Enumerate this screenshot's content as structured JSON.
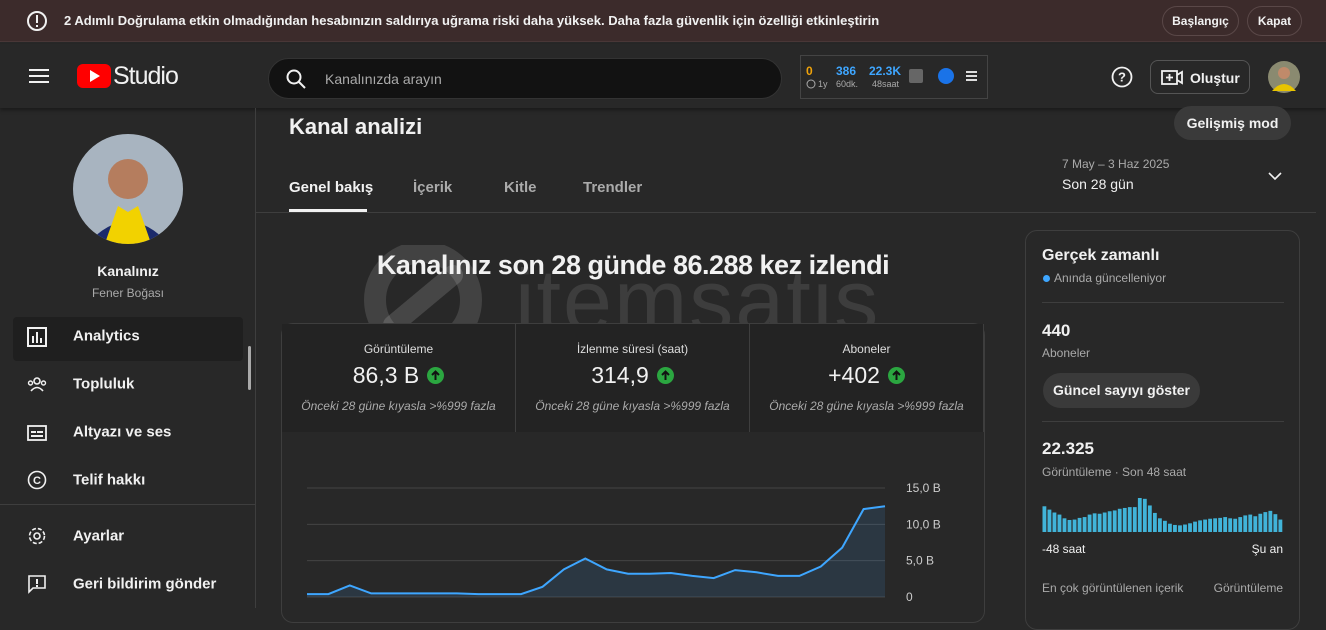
{
  "banner": {
    "message": "2 Adımlı Doğrulama etkin olmadığından hesabınızın saldırıya uğrama riski daha yüksek. Daha fazla güvenlik için özelliği etkinleştirin",
    "actions": [
      "Başlangıç",
      "Kapat"
    ]
  },
  "header": {
    "logo": "Studio",
    "search_placeholder": "Kanalınızda arayın",
    "stats": [
      {
        "value": "0",
        "label": "1y"
      },
      {
        "value": "386",
        "label": "60dk."
      },
      {
        "value": "22.3K",
        "label": "48saat"
      }
    ],
    "create": "Oluştur"
  },
  "sidebar": {
    "channel_name": "Kanalınız",
    "channel_subtitle": "Fener Boğası",
    "nav": [
      "Analytics",
      "Topluluk",
      "Altyazı ve ses",
      "Telif hakkı"
    ],
    "footer": [
      "Ayarlar",
      "Geri bildirim gönder"
    ]
  },
  "page": {
    "title": "Kanal analizi",
    "advanced": "Gelişmiş mod",
    "tabs": [
      "Genel bakış",
      "İçerik",
      "Kitle",
      "Trendler"
    ],
    "date_range": "7 May – 3 Haz 2025",
    "period": "Son 28 gün"
  },
  "watermark": "itemsatis",
  "overview": {
    "headline": "Kanalınız son 28 günde 86.288 kez izlendi",
    "metrics": [
      {
        "label": "Görüntüleme",
        "value": "86,3 B",
        "comparison": "Önceki 28 güne kıyasla >%999 fazla"
      },
      {
        "label": "İzlenme süresi (saat)",
        "value": "314,9",
        "comparison": "Önceki 28 güne kıyasla >%999 fazla"
      },
      {
        "label": "Aboneler",
        "value": "+402",
        "comparison": "Önceki 28 güne kıyasla >%999 fazla"
      }
    ]
  },
  "overview_chart": {
    "type": "line",
    "color": "#3ea6ff",
    "ylim": [
      0,
      15
    ],
    "yticks": [
      0,
      {
        "value": 5,
        "label": "5,0 B"
      },
      {
        "value": 10,
        "label": "10,0 B"
      },
      {
        "value": 15,
        "label": "15,0 B"
      }
    ],
    "grid": true,
    "values": [
      0.4,
      0.4,
      1.6,
      0.5,
      0.5,
      0.5,
      0.5,
      0.5,
      0.4,
      0.4,
      0.4,
      1.4,
      3.8,
      5.3,
      3.8,
      3.2,
      3.2,
      3.3,
      2.9,
      2.6,
      3.7,
      3.4,
      2.9,
      2.9,
      4.2,
      6.8,
      12.1,
      12.5
    ]
  },
  "realtime": {
    "title": "Gerçek zamanlı",
    "status": "Anında güncelleniyor",
    "subscribers": "440",
    "subscribers_label": "Aboneler",
    "button": "Güncel sayıyı göster",
    "views": "22.325",
    "views_label": "Görüntüleme · Son 48 saat",
    "chart": {
      "type": "bar",
      "color": "#41b4d9",
      "values": [
        620,
        540,
        470,
        420,
        330,
        290,
        300,
        340,
        360,
        420,
        450,
        440,
        470,
        500,
        520,
        560,
        580,
        600,
        600,
        820,
        800,
        640,
        460,
        330,
        270,
        200,
        170,
        160,
        180,
        210,
        250,
        280,
        300,
        320,
        330,
        340,
        360,
        330,
        320,
        360,
        400,
        420,
        380,
        440,
        480,
        510,
        430,
        300
      ]
    },
    "x_start": "-48 saat",
    "x_end": "Şu an",
    "top_content": "En çok görüntülenen içerik",
    "top_content_metric": "Görüntüleme"
  }
}
